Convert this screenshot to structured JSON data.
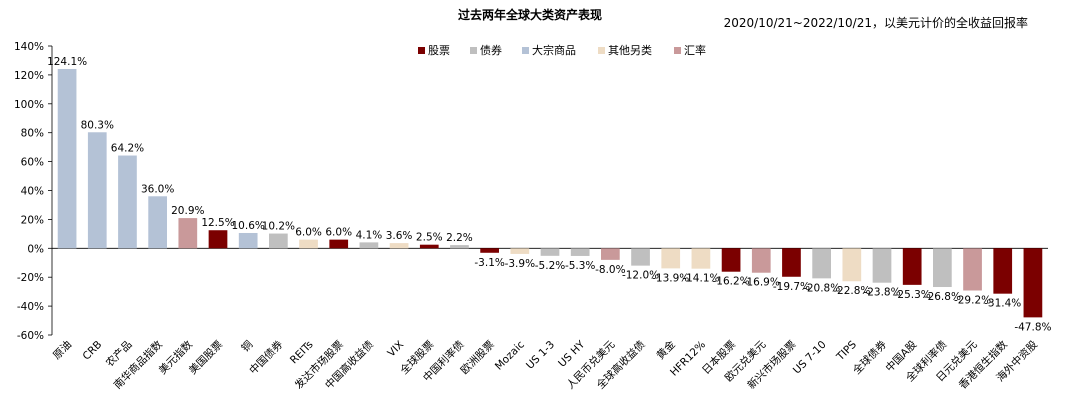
{
  "chart_data": {
    "type": "bar",
    "title": "过去两年全球大类资产表现",
    "subtitle": "2020/10/21~2022/10/21，以美元计价的全收益回报率",
    "ylim": [
      -60,
      140
    ],
    "yticks": [
      "140%",
      "120%",
      "100%",
      "80%",
      "60%",
      "40%",
      "20%",
      "0%",
      "-20%",
      "-40%",
      "-60%"
    ],
    "ytick_values": [
      140,
      120,
      100,
      80,
      60,
      40,
      20,
      0,
      -20,
      -40,
      -60
    ],
    "legend": [
      {
        "key": "equity",
        "name": "股票",
        "color": "#7b0000"
      },
      {
        "key": "bond",
        "name": "债券",
        "color": "#bfbfbf"
      },
      {
        "key": "commodity",
        "name": "大宗商品",
        "color": "#b4c2d6"
      },
      {
        "key": "alt",
        "name": "其他另类",
        "color": "#eedcc4"
      },
      {
        "key": "fx",
        "name": "汇率",
        "color": "#c9999a"
      }
    ],
    "categories": [
      "原油",
      "CRB",
      "农产品",
      "南华商品指数",
      "美元指数",
      "美国股票",
      "铜",
      "中国债券",
      "REITs",
      "发达市场股票",
      "中国高收益债",
      "VIX",
      "全球股票",
      "中国利率债",
      "欧洲股票",
      "Mozaic",
      "US 1-3",
      "US HY",
      "人民币兑美元",
      "全球高收益债",
      "黄金",
      "HFR12%",
      "日本股票",
      "欧元兑美元",
      "新兴市场股票",
      "US 7-10",
      "TIPS",
      "全球债券",
      "中国A股",
      "全球利率债",
      "日元兑美元",
      "香港恒生指数",
      "海外中资股"
    ],
    "values": [
      124.1,
      80.3,
      64.2,
      36.0,
      20.9,
      12.5,
      10.6,
      10.2,
      6.0,
      6.0,
      4.1,
      3.6,
      2.5,
      2.2,
      -3.1,
      -3.9,
      -5.2,
      -5.3,
      -8.0,
      -12.0,
      -13.9,
      -14.1,
      -16.2,
      -16.9,
      -19.7,
      -20.8,
      -22.8,
      -23.8,
      -25.3,
      -26.8,
      -29.2,
      -31.4,
      -47.8
    ],
    "labels": [
      "124.1%",
      "80.3%",
      "64.2%",
      "36.0%",
      "20.9%",
      "12.5%",
      "10.6%",
      "10.2%",
      "6.0%",
      "6.0%",
      "4.1%",
      "3.6%",
      "2.5%",
      "2.2%",
      "-3.1%",
      "-3.9%",
      "-5.2%",
      "-5.3%",
      "-8.0%",
      "-12.0%",
      "-13.9%",
      "-14.1%",
      "-16.2%",
      "-16.9%",
      "-19.7%",
      "-20.8%",
      "-22.8%",
      "-23.8%",
      "-25.3%",
      "-26.8%",
      "-29.2%",
      "-31.4%",
      "-47.8%"
    ],
    "groups": [
      "commodity",
      "commodity",
      "commodity",
      "commodity",
      "fx",
      "equity",
      "commodity",
      "bond",
      "alt",
      "equity",
      "bond",
      "alt",
      "equity",
      "bond",
      "equity",
      "alt",
      "bond",
      "bond",
      "fx",
      "bond",
      "alt",
      "alt",
      "equity",
      "fx",
      "equity",
      "bond",
      "alt",
      "bond",
      "equity",
      "bond",
      "fx",
      "equity",
      "equity"
    ],
    "legend_position": "top-right",
    "grid": false
  }
}
